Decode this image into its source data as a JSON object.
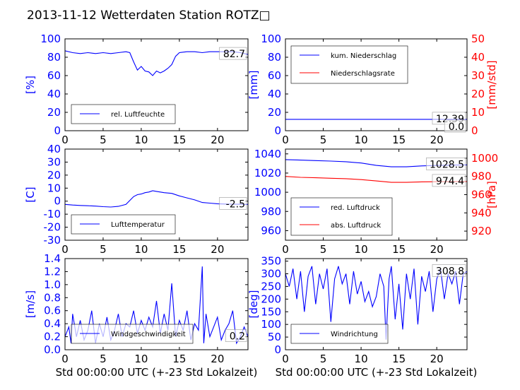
{
  "page": {
    "title": "2013-11-12 Wetterdaten Station ROTZ□"
  },
  "colors": {
    "primary": "#0000ff",
    "secondary": "#ff0000",
    "axis": "#000000"
  },
  "chart_data": [
    {
      "type": "line",
      "panel": "humidity",
      "ylabel": "[%]",
      "ylim": [
        0,
        100
      ],
      "yticks": [
        0,
        20,
        40,
        60,
        80,
        100
      ],
      "xlabel": "",
      "xlim": [
        0,
        24
      ],
      "xticks": [
        0,
        5,
        10,
        15,
        20
      ],
      "last_value": "82.7",
      "legend": {
        "placement": "lower-left"
      },
      "series": [
        {
          "name": "rel. Luftfeuchte",
          "color": "#0000ff",
          "x": [
            0,
            1,
            2,
            3,
            4,
            5,
            6,
            7,
            8,
            8.5,
            9,
            9.5,
            10,
            10.5,
            11,
            11.5,
            12,
            12.5,
            13,
            13.5,
            14,
            14.5,
            15,
            16,
            17,
            18,
            19,
            20,
            21,
            22,
            23,
            24
          ],
          "y": [
            87,
            85,
            84,
            85,
            84,
            85,
            84,
            85,
            86,
            85,
            75,
            66,
            70,
            65,
            64,
            60,
            65,
            63,
            65,
            68,
            72,
            81,
            85,
            86,
            86,
            85,
            86,
            86,
            86,
            86,
            85,
            83
          ]
        }
      ]
    },
    {
      "type": "line",
      "panel": "precipitation",
      "ylabel": "[mm]",
      "ylim": [
        0,
        100
      ],
      "yticks": [
        0,
        20,
        40,
        60,
        80,
        100
      ],
      "y2label": "[mm/std]",
      "y2lim": [
        0,
        50
      ],
      "y2ticks": [
        0,
        10,
        20,
        30,
        40,
        50
      ],
      "xlabel": "",
      "xlim": [
        0,
        24
      ],
      "xticks": [
        0,
        5,
        10,
        15,
        20
      ],
      "last_values": [
        "12.39",
        "0.0"
      ],
      "legend": {
        "placement": "upper-left"
      },
      "series": [
        {
          "name": "kum. Niederschlag",
          "color": "#0000ff",
          "axis": "left",
          "x": [
            0,
            24
          ],
          "y": [
            12.39,
            12.39
          ]
        },
        {
          "name": "Niederschlagsrate",
          "color": "#ff0000",
          "axis": "right",
          "x": [
            0,
            24
          ],
          "y": [
            0,
            0
          ]
        }
      ]
    },
    {
      "type": "line",
      "panel": "temperature",
      "ylabel": "[C]",
      "ylim": [
        -30,
        40
      ],
      "yticks": [
        -30,
        -20,
        -10,
        0,
        10,
        20,
        30,
        40
      ],
      "xlabel": "",
      "xlim": [
        0,
        24
      ],
      "xticks": [
        0,
        5,
        10,
        15,
        20
      ],
      "last_value": "-2.5",
      "legend": {
        "placement": "lower-left"
      },
      "series": [
        {
          "name": "Lufttemperatur",
          "color": "#0000ff",
          "x": [
            0,
            1,
            2,
            3,
            4,
            5,
            6,
            7,
            8,
            8.5,
            9,
            9.5,
            10,
            10.5,
            11,
            11.5,
            12,
            13,
            14,
            15,
            16,
            17,
            18,
            19,
            20,
            21,
            22,
            23,
            24
          ],
          "y": [
            -2.5,
            -3,
            -3.3,
            -3.5,
            -3.8,
            -4.2,
            -4.5,
            -4,
            -2.5,
            0.5,
            3.5,
            5,
            5.5,
            6.5,
            7,
            8,
            7.5,
            6.5,
            6,
            4,
            2.5,
            1,
            -1,
            -1.5,
            -2,
            -2.2,
            -2.3,
            -2.4,
            -2.5
          ]
        }
      ]
    },
    {
      "type": "line",
      "panel": "pressure",
      "ylabel": "",
      "ylim": [
        950,
        1045
      ],
      "yticks": [
        960,
        980,
        1000,
        1020,
        1040
      ],
      "y2label": "[hPa]",
      "y2lim": [
        910,
        1010
      ],
      "y2ticks": [
        920,
        940,
        960,
        980,
        1000
      ],
      "xlabel": "",
      "xlim": [
        0,
        24
      ],
      "xticks": [
        0,
        5,
        10,
        15,
        20
      ],
      "last_values": [
        "1028.5",
        "974.4"
      ],
      "legend": {
        "placement": "lower-left"
      },
      "series": [
        {
          "name": "red. Luftdruck",
          "color": "#0000ff",
          "axis": "left",
          "x": [
            0,
            2,
            4,
            6,
            8,
            10,
            12,
            14,
            16,
            18,
            20,
            22,
            24
          ],
          "y": [
            1034,
            1033.5,
            1033,
            1032.5,
            1031.8,
            1030.5,
            1028,
            1026.5,
            1026.5,
            1027.5,
            1028,
            1028.3,
            1028.5
          ]
        },
        {
          "name": "abs. Luftdruck",
          "color": "#ff0000",
          "axis": "right",
          "x": [
            0,
            2,
            4,
            6,
            8,
            10,
            12,
            14,
            16,
            18,
            20,
            22,
            24
          ],
          "y": [
            980,
            979,
            978.5,
            978,
            977.5,
            976.5,
            975,
            973.5,
            973.5,
            974,
            974.2,
            974.3,
            974.4
          ]
        }
      ]
    },
    {
      "type": "line",
      "panel": "wind-speed",
      "ylabel": "[m/s]",
      "ylim": [
        0,
        1.4
      ],
      "yticks": [
        0.0,
        0.2,
        0.4,
        0.6,
        0.8,
        1.0,
        1.2,
        1.4
      ],
      "xlabel": "Std 00:00:00 UTC (+-23 Std Lokalzeit)",
      "xlim": [
        0,
        24
      ],
      "xticks": [
        0,
        5,
        10,
        15,
        20
      ],
      "last_value": "0.2",
      "legend": {
        "placement": "lower-left"
      },
      "series": [
        {
          "name": "Windgeschwindigkeit",
          "color": "#0000ff",
          "x": [
            0,
            0.5,
            0.8,
            1,
            1.5,
            2,
            2.5,
            3,
            3.5,
            4,
            4.5,
            5,
            5.5,
            6,
            6.5,
            7,
            7.5,
            8,
            8.5,
            9,
            9.5,
            10,
            10.5,
            11,
            11.5,
            12,
            12.5,
            13,
            13.5,
            14,
            14.5,
            15,
            15.5,
            16,
            16.5,
            17,
            17.5,
            18,
            18.2,
            18.5,
            19,
            19.5,
            20,
            20.5,
            21,
            21.5,
            22,
            22.5,
            23,
            23.5,
            24
          ],
          "y": [
            0.2,
            0.35,
            0.1,
            0.55,
            0.2,
            0.45,
            0.15,
            0.3,
            0.6,
            0.1,
            0.4,
            0.2,
            0.5,
            0.15,
            0.3,
            0.55,
            0.2,
            0.4,
            0.35,
            0.6,
            0.25,
            0.45,
            0.3,
            0.5,
            0.35,
            0.75,
            0.25,
            0.55,
            0.3,
            1.02,
            0.2,
            0.45,
            0.3,
            0.6,
            0.15,
            0.4,
            0.3,
            1.28,
            0.1,
            0.55,
            0.2,
            0.35,
            0.5,
            0.15,
            0.3,
            0.4,
            0.6,
            0.1,
            0.2,
            0.35,
            0.2
          ]
        }
      ]
    },
    {
      "type": "line",
      "panel": "wind-direction",
      "ylabel": "[deg]",
      "ylim": [
        0,
        360
      ],
      "yticks": [
        0,
        50,
        100,
        150,
        200,
        250,
        300,
        350
      ],
      "xlabel": "Std 00:00:00 UTC (+-23 Std Lokalzeit)",
      "xlim": [
        0,
        24
      ],
      "xticks": [
        0,
        5,
        10,
        15,
        20
      ],
      "last_value": "308.8",
      "legend": {
        "placement": "lower-left"
      },
      "series": [
        {
          "name": "Windrichtung",
          "color": "#0000ff",
          "x": [
            0,
            0.5,
            1,
            1.5,
            2,
            2.5,
            3,
            3.5,
            4,
            4.5,
            5,
            5.5,
            6,
            6.5,
            7,
            7.5,
            8,
            8.5,
            9,
            9.5,
            10,
            10.5,
            11,
            11.5,
            12,
            12.5,
            13,
            13.3,
            13.7,
            14,
            14.5,
            15,
            15.5,
            16,
            16.5,
            17,
            17.5,
            18,
            18.5,
            19,
            19.5,
            20,
            20.5,
            21,
            21.5,
            22,
            22.5,
            23,
            23.5,
            24
          ],
          "y": [
            300,
            250,
            320,
            200,
            310,
            150,
            290,
            330,
            180,
            300,
            240,
            320,
            110,
            280,
            330,
            260,
            300,
            180,
            310,
            220,
            270,
            190,
            230,
            170,
            210,
            300,
            250,
            40,
            280,
            330,
            120,
            260,
            80,
            300,
            200,
            320,
            100,
            290,
            230,
            310,
            150,
            280,
            320,
            200,
            300,
            260,
            310,
            180,
            300,
            308.8
          ]
        }
      ]
    }
  ]
}
